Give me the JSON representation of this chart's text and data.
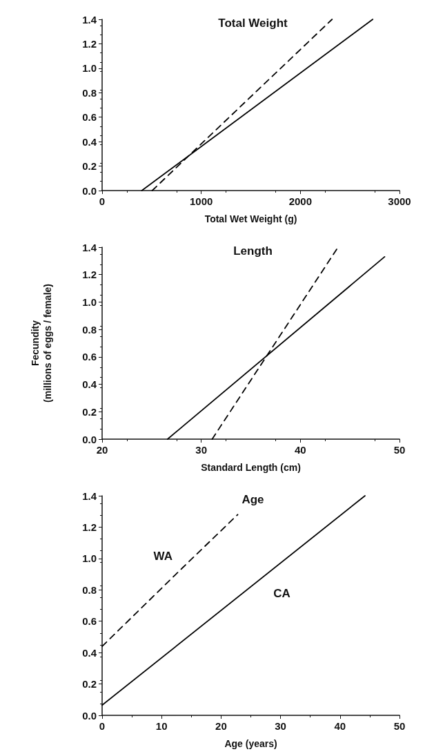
{
  "chart_data": [
    {
      "type": "line",
      "title": "Total Weight",
      "xlabel": "Total Wet Weight (g)",
      "xlim": [
        0,
        3000
      ],
      "xticks": [
        0,
        1000,
        2000,
        3000
      ],
      "ylim": [
        0,
        1.4
      ],
      "yticks": [
        {
          "value": 0,
          "label": "0.0"
        },
        {
          "value": 0.2,
          "label": "0.2"
        },
        {
          "value": 0.4,
          "label": "0.4"
        },
        {
          "value": 0.6,
          "label": "0.6"
        },
        {
          "value": 0.8,
          "label": "0.8"
        },
        {
          "value": 1.0,
          "label": "1.0"
        },
        {
          "value": 1.2,
          "label": "1.2"
        },
        {
          "value": 1.4,
          "label": "1.4"
        }
      ],
      "grid": false,
      "marker": "none",
      "series": [
        {
          "color": "#000000",
          "line_style": "solid",
          "x": [
            400,
            2730
          ],
          "values": [
            0,
            1.4
          ]
        },
        {
          "color": "#000000",
          "line_style": "dashed",
          "x": [
            505,
            2320
          ],
          "values": [
            0,
            1.4
          ]
        }
      ]
    },
    {
      "type": "line",
      "title": "Length",
      "xlabel": "Standard Length (cm)",
      "ylabel": "Fecundity\n(millions of eggs / female)",
      "xlim": [
        20,
        50
      ],
      "xticks": [
        20,
        30,
        40,
        50
      ],
      "ylim": [
        0,
        1.4
      ],
      "yticks": [
        {
          "value": 0,
          "label": "0.0"
        },
        {
          "value": 0.2,
          "label": "0.2"
        },
        {
          "value": 0.4,
          "label": "0.4"
        },
        {
          "value": 0.6,
          "label": "0.6"
        },
        {
          "value": 0.8,
          "label": "0.8"
        },
        {
          "value": 1.0,
          "label": "1.0"
        },
        {
          "value": 1.2,
          "label": "1.2"
        },
        {
          "value": 1.4,
          "label": "1.4"
        }
      ],
      "grid": false,
      "marker": "none",
      "series": [
        {
          "color": "#000000",
          "line_style": "solid",
          "x": [
            26.6,
            48.5
          ],
          "values": [
            0,
            1.33
          ]
        },
        {
          "color": "#000000",
          "line_style": "dashed",
          "x": [
            31.1,
            43.8
          ],
          "values": [
            0,
            1.4
          ]
        }
      ]
    },
    {
      "type": "line",
      "title": "Age",
      "xlabel": "Age (years)",
      "xlim": [
        0,
        50
      ],
      "xticks": [
        0,
        10,
        20,
        30,
        40,
        50
      ],
      "ylim": [
        0,
        1.4
      ],
      "yticks": [
        {
          "value": 0,
          "label": "0.0"
        },
        {
          "value": 0.2,
          "label": "0.2"
        },
        {
          "value": 0.4,
          "label": "0.4"
        },
        {
          "value": 0.6,
          "label": "0.6"
        },
        {
          "value": 0.8,
          "label": "0.8"
        },
        {
          "value": 1.0,
          "label": "1.0"
        },
        {
          "value": 1.2,
          "label": "1.2"
        },
        {
          "value": 1.4,
          "label": "1.4"
        }
      ],
      "grid": false,
      "marker": "none",
      "series": [
        {
          "name": "CA",
          "color": "#000000",
          "line_style": "solid",
          "x": [
            0,
            44.2
          ],
          "values": [
            0.065,
            1.4
          ]
        },
        {
          "name": "WA",
          "color": "#000000",
          "line_style": "dashed",
          "x": [
            0,
            13.5,
            22.8
          ],
          "values": [
            0.44,
            0.94,
            1.28
          ]
        }
      ]
    }
  ]
}
